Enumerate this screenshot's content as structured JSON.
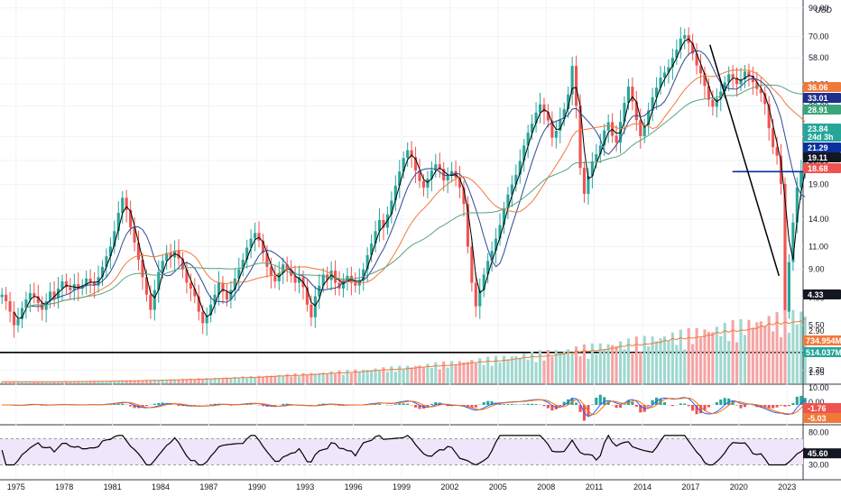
{
  "chart_data": {
    "type": "candlestick",
    "currency_label": "USD",
    "x_axis": {
      "tick_labels": [
        "1975",
        "1978",
        "1981",
        "1984",
        "1987",
        "1990",
        "1993",
        "1996",
        "1999",
        "2002",
        "2005",
        "2008",
        "2011",
        "2014",
        "2017",
        "2020",
        "2023"
      ],
      "range_years": [
        1974.0,
        2024.0
      ]
    },
    "price_panel": {
      "scale": "log",
      "tick_labels": [
        "90.00",
        "70.00",
        "58.00",
        "46.00",
        "38.00",
        "29.00",
        "23.50",
        "19.00",
        "14.00",
        "11.00",
        "9.00",
        "7.00",
        "5.50",
        "4.40",
        "3.70"
      ],
      "range": [
        3.3,
        95
      ],
      "candles_quarterly": {
        "start_year": 1974.0,
        "closes": [
          7.2,
          6.8,
          6.2,
          5.5,
          5.8,
          6.4,
          6.9,
          7.3,
          7.1,
          6.7,
          6.3,
          6.8,
          7.4,
          7.0,
          7.6,
          8.1,
          7.7,
          7.5,
          7.9,
          7.6,
          7.8,
          8.3,
          8.0,
          7.8,
          8.4,
          9.2,
          10.1,
          11.0,
          12.6,
          14.8,
          16.9,
          15.2,
          13.0,
          11.4,
          9.8,
          8.4,
          7.2,
          6.3,
          7.5,
          8.8,
          9.7,
          10.4,
          10.0,
          10.6,
          9.9,
          9.0,
          8.0,
          7.6,
          7.1,
          6.2,
          5.6,
          6.0,
          6.6,
          7.2,
          8.0,
          7.4,
          6.9,
          7.5,
          8.3,
          9.0,
          9.8,
          10.9,
          11.8,
          12.4,
          11.6,
          10.4,
          9.2,
          8.5,
          8.1,
          8.7,
          9.4,
          9.0,
          8.5,
          8.0,
          8.4,
          7.7,
          6.6,
          5.9,
          7.1,
          7.8,
          8.6,
          8.2,
          8.9,
          8.0,
          7.6,
          8.2,
          8.5,
          8.0,
          7.8,
          8.2,
          9.0,
          10.2,
          11.3,
          12.6,
          13.9,
          13.0,
          14.6,
          16.5,
          18.8,
          21.3,
          24.0,
          25.7,
          24.2,
          21.5,
          19.6,
          18.5,
          20.0,
          21.5,
          22.7,
          21.8,
          19.7,
          20.6,
          21.4,
          20.2,
          18.5,
          16.0,
          11.0,
          8.0,
          6.5,
          7.5,
          8.6,
          9.7,
          10.6,
          11.8,
          13.3,
          15.4,
          17.4,
          19.0,
          20.7,
          23.4,
          26.8,
          30.0,
          32.5,
          35.8,
          38.5,
          36.0,
          33.4,
          28.7,
          30.5,
          33.8,
          36.9,
          42.0,
          54.0,
          38.0,
          22.0,
          17.5,
          20.5,
          23.3,
          24.8,
          26.8,
          30.6,
          32.9,
          29.2,
          27.5,
          33.0,
          39.0,
          45.0,
          39.5,
          33.5,
          29.1,
          32.0,
          36.5,
          41.0,
          44.6,
          48.7,
          50.9,
          53.4,
          58.0,
          62.3,
          68.7,
          70.8,
          66.1,
          60.2,
          54.2,
          50.6,
          45.3,
          40.1,
          37.7,
          40.5,
          43.1,
          46.7,
          50.2,
          48.6,
          46.0,
          48.0,
          51.4,
          49.5,
          46.8,
          44.1,
          42.5,
          38.6,
          31.2,
          26.4,
          24.5,
          19.1,
          6.2,
          9.6,
          13.6,
          18.5,
          21.3,
          23.8
        ]
      },
      "overlays": [
        {
          "name": "SMA short",
          "color": "#000000"
        },
        {
          "name": "SMA mid",
          "color": "#2b4a8f"
        },
        {
          "name": "SMA long",
          "color": "#f0793a"
        },
        {
          "name": "SMA longest",
          "color": "#5aa37d"
        }
      ],
      "horizontal_lines": [
        {
          "value": 4.33,
          "label": "4.33",
          "color": "#000000"
        },
        {
          "value": 21.29,
          "label": "21.29",
          "color": "#0a2f9e"
        }
      ],
      "trend_line": {
        "from": [
          2018.2,
          65.0
        ],
        "to": [
          2022.5,
          8.5
        ]
      },
      "price_badges": [
        {
          "label": "36.06",
          "color": "#f0793a"
        },
        {
          "label": "33.01",
          "color": "#1e2f8c"
        },
        {
          "label": "28.91",
          "color": "#3aa57a"
        },
        {
          "label": "23.84",
          "sub": "24d 3h",
          "color": "#26a69a"
        },
        {
          "label": "21.29",
          "color": "#0a2f9e"
        },
        {
          "label": "19.11",
          "color": "#131722"
        },
        {
          "label": "18.68",
          "color": "#ef5350"
        },
        {
          "label": "4.33",
          "color": "#131722"
        }
      ]
    },
    "volume_panel": {
      "tick_labels": [
        "2.90",
        "1.95"
      ],
      "badges": [
        {
          "label": "734.954M",
          "color": "#f0793a"
        },
        {
          "label": "514.037M",
          "color": "#26a69a"
        }
      ]
    },
    "macd_panel": {
      "tick_labels": [
        "10.00",
        "0.00"
      ],
      "badges": [
        {
          "label": "-1.76",
          "color": "#ef5350"
        },
        {
          "label": "-5.03",
          "color": "#f0793a"
        }
      ]
    },
    "rsi_panel": {
      "tick_labels": [
        "80.00",
        "30.00"
      ],
      "band": [
        30,
        70
      ],
      "last": 45.6,
      "badges": [
        {
          "label": "45.60",
          "color": "#131722"
        }
      ]
    }
  }
}
